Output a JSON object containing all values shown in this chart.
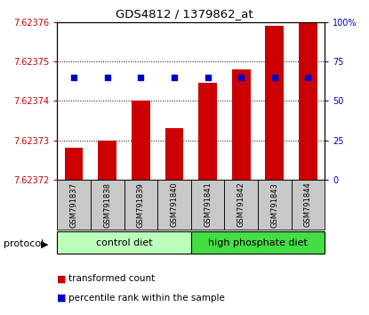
{
  "title": "GDS4812 / 1379862_at",
  "samples": [
    "GSM791837",
    "GSM791838",
    "GSM791839",
    "GSM791840",
    "GSM791841",
    "GSM791842",
    "GSM791843",
    "GSM791844"
  ],
  "transformed_count": [
    7.623728,
    7.62373,
    7.62374,
    7.623733,
    7.6237445,
    7.623748,
    7.623759,
    7.623762
  ],
  "percentile_rank": [
    65,
    65,
    65,
    65,
    65,
    65,
    65,
    65
  ],
  "ylim_left": [
    7.62372,
    7.62376
  ],
  "ylim_right": [
    0,
    100
  ],
  "yticks_left": [
    7.62372,
    7.62373,
    7.62374,
    7.62375,
    7.62376
  ],
  "yticks_right": [
    0,
    25,
    50,
    75,
    100
  ],
  "bar_color": "#cc0000",
  "dot_color": "#0000cc",
  "bar_width": 0.55,
  "left_tick_color": "#cc0000",
  "right_tick_color": "#0000cc",
  "legend_items": [
    "transformed count",
    "percentile rank within the sample"
  ],
  "control_color": "#bbffbb",
  "hpd_color": "#44dd44",
  "xtick_bg": "#c8c8c8"
}
